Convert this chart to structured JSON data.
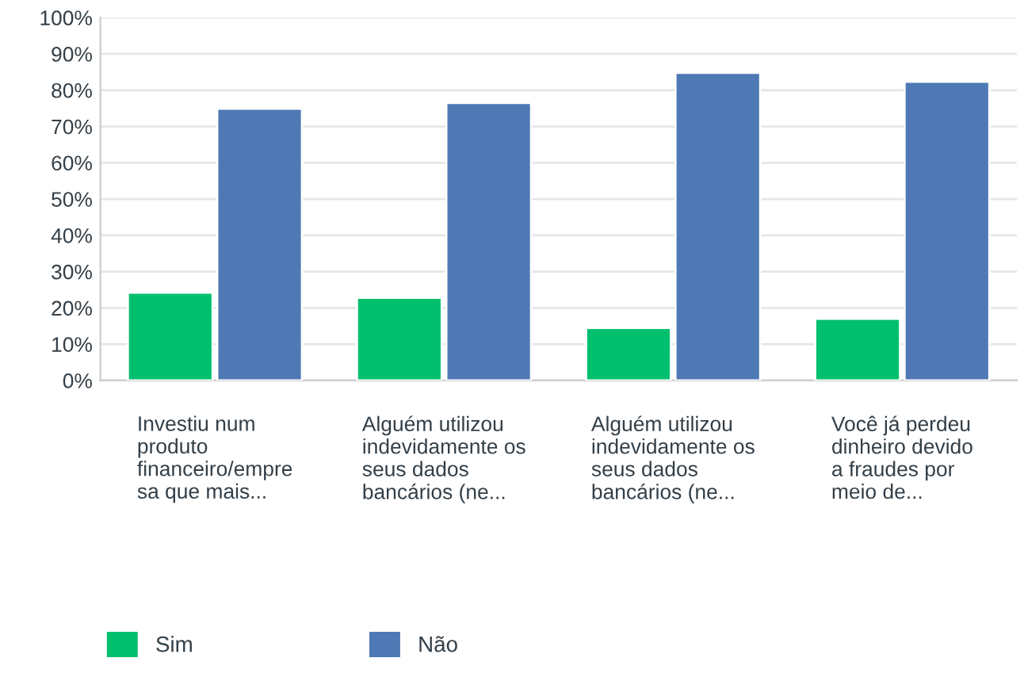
{
  "chart_data": {
    "type": "bar",
    "categories": [
      "Investiu num\nproduto\nfinanceiro/empre\nsa que mais...",
      "Alguém utilizou\nindevidamente os\nseus dados\nbancários (ne...",
      "Alguém utilizou\nindevidamente os\nseus dados\nbancários (ne...",
      "Você já perdeu\ndinheiro devido\na fraudes por\nmeio de..."
    ],
    "series": [
      {
        "name": "Sim",
        "color": "#00bf6f",
        "values": [
          24.2,
          22.8,
          14.5,
          17.0
        ]
      },
      {
        "name": "Não",
        "color": "#4e79b4",
        "values": [
          74.9,
          76.5,
          84.8,
          82.3
        ]
      }
    ],
    "ylim": [
      0,
      100
    ],
    "yticks": [
      {
        "value": 0,
        "label": "0%"
      },
      {
        "value": 10,
        "label": "10%"
      },
      {
        "value": 20,
        "label": "20%"
      },
      {
        "value": 30,
        "label": "30%"
      },
      {
        "value": 40,
        "label": "40%"
      },
      {
        "value": 50,
        "label": "50%"
      },
      {
        "value": 60,
        "label": "60%"
      },
      {
        "value": 70,
        "label": "70%"
      },
      {
        "value": 80,
        "label": "80%"
      },
      {
        "value": 90,
        "label": "90%"
      },
      {
        "value": 100,
        "label": "100%"
      }
    ],
    "grid": "y",
    "legend": "bottom left"
  }
}
